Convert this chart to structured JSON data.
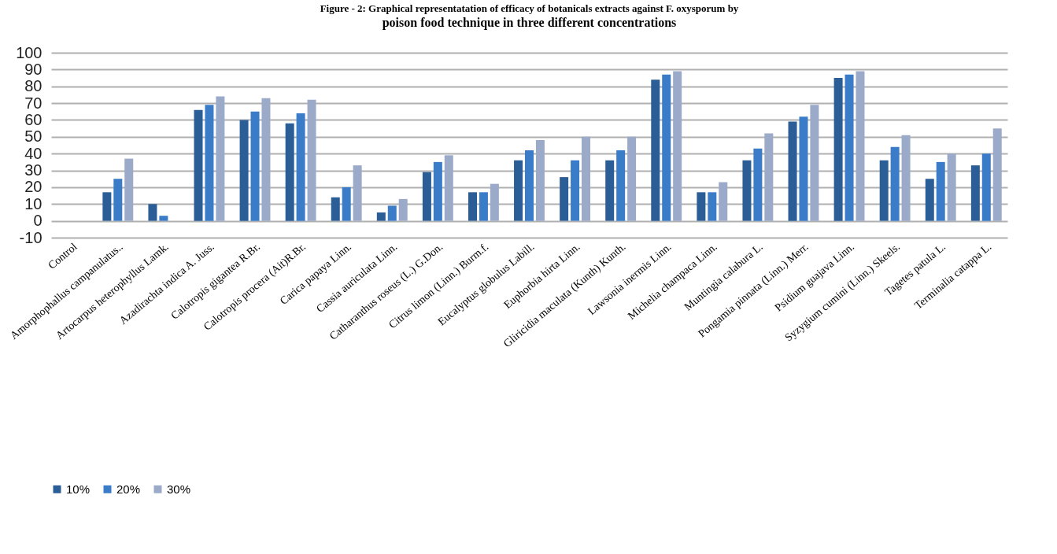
{
  "chart_data": {
    "type": "bar",
    "title": "Figure - 2: Graphical representatation of efficacy of botanicals extracts against F. oxysporum by",
    "subtitle": "poison food technique in three different concentrations",
    "categories": [
      "Control",
      "Amorphophallus campanulatus..",
      "Artocarpus heterophyllus Lamk.",
      "Azadirachta indica A. Juss.",
      "Calotropis gigantea R.Br.",
      "Calotropis procera (Ait)R.Br.",
      "Carica papaya Linn.",
      "Cassia auriculata Linn.",
      "Catharanthus roseus (L.) G.Don.",
      "Citrus limon (Linn.) Burm.f.",
      "Eucalyptus globulus Labill.",
      "Euphorbia hirta Linn.",
      "Gliricidia maculata (Kunth) Kunth.",
      "Lawsonia inermis Linn.",
      "Michelia champaca Linn.",
      "Muntingia calabura L.",
      "Pongamia pinnata (Linn.) Merr.",
      "Psidium guajava Linn.",
      "Syzygium cumini (Linn.) Skeels.",
      "Tagetes patula L.",
      "Terminalia catappa L."
    ],
    "series": [
      {
        "name": "10%",
        "color": "#2b5d96",
        "values": [
          0,
          17,
          10,
          66,
          60,
          58,
          14,
          5,
          29,
          17,
          36,
          26,
          36,
          84,
          17,
          36,
          59,
          85,
          36,
          25,
          33
        ]
      },
      {
        "name": "20%",
        "color": "#3a7cc8",
        "values": [
          0,
          25,
          3,
          69,
          65,
          64,
          20,
          9,
          35,
          17,
          42,
          36,
          42,
          87,
          17,
          43,
          62,
          87,
          44,
          35,
          40
        ]
      },
      {
        "name": "30%",
        "color": "#9aaac8",
        "values": [
          0,
          37,
          0,
          74,
          73,
          72,
          33,
          13,
          39,
          22,
          48,
          50,
          50,
          89,
          23,
          52,
          69,
          89,
          51,
          40,
          55
        ]
      }
    ],
    "ylim": [
      -10,
      100
    ],
    "yticks": [
      -10,
      0,
      10,
      20,
      30,
      40,
      50,
      60,
      70,
      80,
      90,
      100
    ],
    "grid": "y",
    "legend": "bottom"
  }
}
